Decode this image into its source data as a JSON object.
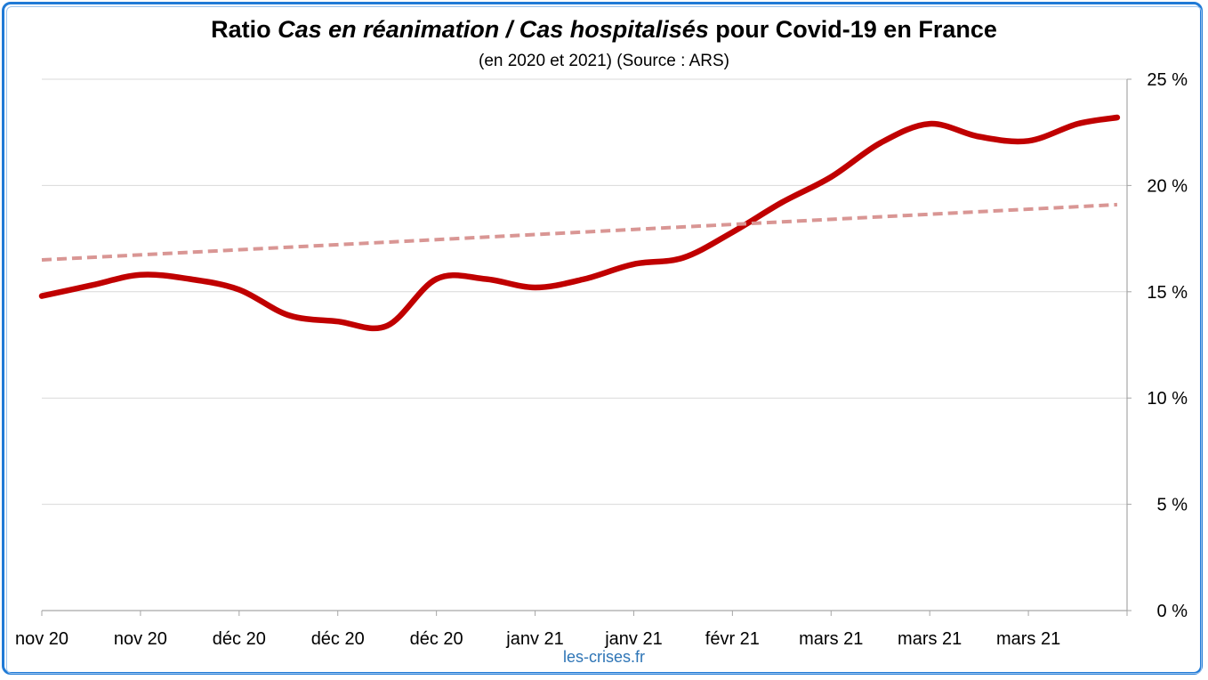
{
  "chart_data": {
    "type": "line",
    "title_parts": {
      "pre": "Ratio ",
      "italic": "Cas en réanimation / Cas hospitalisés",
      "post": " pour Covid-19 en France"
    },
    "subtitle": "(en 2020 et 2021) (Source : ARS)",
    "source_note": "les-crises.fr",
    "x_tick_labels": [
      "nov 20",
      "nov 20",
      "déc 20",
      "déc 20",
      "déc 20",
      "janv 21",
      "janv 21",
      "févr 21",
      "mars 21",
      "mars 21",
      "mars 21"
    ],
    "y_tick_labels": [
      "0 %",
      "5 %",
      "10 %",
      "15 %",
      "20 %",
      "25 %"
    ],
    "y_ticks": [
      0,
      5,
      10,
      15,
      20,
      25
    ],
    "ylim": [
      0,
      25
    ],
    "y_axis_side": "right",
    "grid": true,
    "series": [
      {
        "style": "solid",
        "color": "#c00000",
        "x": [
          0,
          0.5,
          1,
          1.5,
          2,
          2.5,
          3,
          3.5,
          4,
          4.5,
          5,
          5.5,
          6,
          6.5,
          7,
          7.5,
          8,
          8.5,
          9,
          9.5,
          10,
          10.5,
          10.9
        ],
        "values": [
          14.8,
          15.3,
          15.8,
          15.6,
          15.1,
          13.9,
          13.6,
          13.4,
          15.6,
          15.6,
          15.2,
          15.6,
          16.3,
          16.6,
          17.8,
          19.2,
          20.4,
          22.0,
          22.9,
          22.3,
          22.1,
          22.9,
          23.2
        ]
      },
      {
        "style": "dashed",
        "color": "#d99694",
        "x": [
          0,
          10.9
        ],
        "values": [
          16.5,
          19.1
        ]
      }
    ]
  }
}
